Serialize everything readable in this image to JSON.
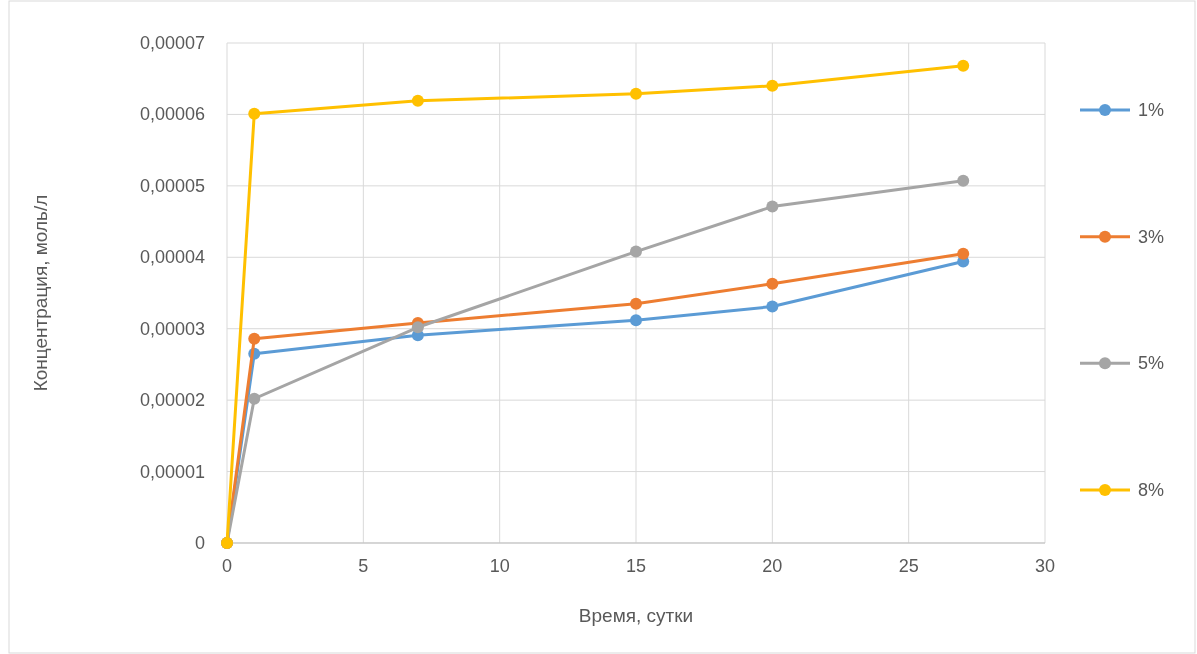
{
  "chart_data": {
    "type": "line",
    "xlabel": "Время, сутки",
    "ylabel": "Концентрация, моль/л",
    "x": [
      0,
      1,
      7,
      15,
      20,
      27
    ],
    "series": [
      {
        "name": "1%",
        "color": "#5b9bd5",
        "values": [
          0,
          2.65e-05,
          2.91e-05,
          3.12e-05,
          3.31e-05,
          3.94e-05
        ]
      },
      {
        "name": "3%",
        "color": "#ed7d31",
        "values": [
          0,
          2.86e-05,
          3.08e-05,
          3.35e-05,
          3.63e-05,
          4.05e-05
        ]
      },
      {
        "name": "5%",
        "color": "#a5a5a5",
        "values": [
          0,
          2.02e-05,
          3.02e-05,
          4.08e-05,
          4.71e-05,
          5.07e-05
        ]
      },
      {
        "name": "8%",
        "color": "#ffc000",
        "values": [
          0,
          6.01e-05,
          6.19e-05,
          6.29e-05,
          6.4e-05,
          6.68e-05
        ]
      }
    ],
    "xlim": [
      0,
      30
    ],
    "xticks": [
      0,
      5,
      10,
      15,
      20,
      25,
      30
    ],
    "ylim": [
      0,
      7e-05
    ],
    "yticks": [
      0,
      {
        "value": 1e-05,
        "label": "0,00001"
      },
      {
        "value": 2e-05,
        "label": "0,00002"
      },
      {
        "value": 3e-05,
        "label": "0,00003"
      },
      {
        "value": 4e-05,
        "label": "0,00004"
      },
      {
        "value": 5e-05,
        "label": "0,00005"
      },
      {
        "value": 6e-05,
        "label": "0,00006"
      },
      {
        "value": 7e-05,
        "label": "0,00007"
      }
    ],
    "grid": true,
    "legend": "right",
    "marker": "circle",
    "line_style": "solid"
  }
}
